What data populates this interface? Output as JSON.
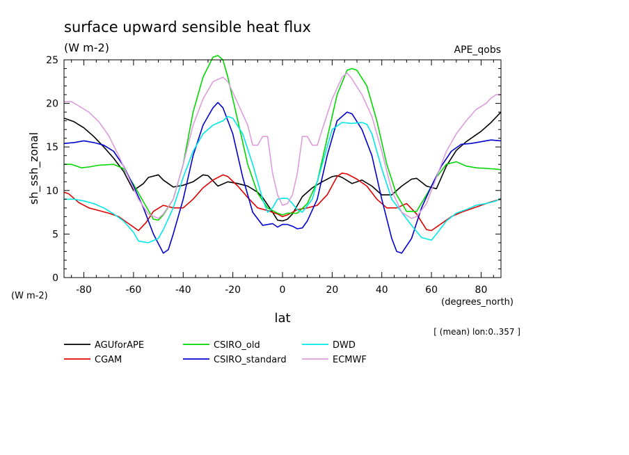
{
  "chart_data": {
    "type": "line",
    "title": "surface upward sensible heat flux",
    "subtitle": "(W m-2)",
    "corner_label": "APE_qobs",
    "ylabel": "sh_ssh_zonal",
    "y_units": "(W m-2)",
    "xlabel": "lat",
    "x_units": "(degrees_north)",
    "note": "[ (mean) lon:0..357 ]",
    "xlim": [
      -88,
      88
    ],
    "ylim": [
      0,
      25
    ],
    "x_ticks": [
      -80,
      -60,
      -40,
      -20,
      0,
      20,
      40,
      60,
      80
    ],
    "y_ticks": [
      0,
      5,
      10,
      15,
      20,
      25
    ],
    "x_tick_labels": [
      "-80",
      "-60",
      "-40",
      "-20",
      "0",
      "20",
      "40",
      "60",
      "80"
    ],
    "y_tick_labels": [
      "0",
      "5",
      "10",
      "15",
      "20",
      "25"
    ],
    "grid": false,
    "legend_position": "bottom",
    "series": [
      {
        "name": "AGUforAPE",
        "color": "#000000",
        "points": [
          [
            -88,
            18.3
          ],
          [
            -84,
            17.9
          ],
          [
            -80,
            17.2
          ],
          [
            -76,
            16.2
          ],
          [
            -72,
            15.0
          ],
          [
            -68,
            13.7
          ],
          [
            -64,
            12.2
          ],
          [
            -60,
            10.0
          ],
          [
            -56,
            10.8
          ],
          [
            -54,
            11.5
          ],
          [
            -50,
            11.8
          ],
          [
            -48,
            11.2
          ],
          [
            -44,
            10.4
          ],
          [
            -40,
            10.6
          ],
          [
            -36,
            11.0
          ],
          [
            -32,
            11.8
          ],
          [
            -30,
            11.7
          ],
          [
            -26,
            10.5
          ],
          [
            -22,
            11.0
          ],
          [
            -18,
            10.8
          ],
          [
            -14,
            10.5
          ],
          [
            -10,
            9.8
          ],
          [
            -8,
            9.2
          ],
          [
            -4,
            7.5
          ],
          [
            -2,
            6.6
          ],
          [
            0,
            6.5
          ],
          [
            2,
            6.7
          ],
          [
            4,
            7.3
          ],
          [
            8,
            9.3
          ],
          [
            12,
            10.3
          ],
          [
            16,
            11.0
          ],
          [
            20,
            11.6
          ],
          [
            22,
            11.7
          ],
          [
            24,
            11.5
          ],
          [
            28,
            10.8
          ],
          [
            32,
            11.2
          ],
          [
            36,
            10.5
          ],
          [
            40,
            9.5
          ],
          [
            44,
            9.5
          ],
          [
            48,
            10.5
          ],
          [
            52,
            11.3
          ],
          [
            54,
            11.4
          ],
          [
            58,
            10.5
          ],
          [
            62,
            10.2
          ],
          [
            66,
            12.8
          ],
          [
            70,
            14.6
          ],
          [
            74,
            15.6
          ],
          [
            80,
            16.8
          ],
          [
            84,
            17.8
          ],
          [
            88,
            19.0
          ]
        ]
      },
      {
        "name": "CGAM",
        "color": "#e00000",
        "points": [
          [
            -88,
            9.8
          ],
          [
            -86,
            9.6
          ],
          [
            -82,
            8.6
          ],
          [
            -78,
            8.0
          ],
          [
            -74,
            7.7
          ],
          [
            -70,
            7.4
          ],
          [
            -66,
            7.0
          ],
          [
            -62,
            6.2
          ],
          [
            -58,
            5.4
          ],
          [
            -55,
            6.3
          ],
          [
            -52,
            7.6
          ],
          [
            -48,
            8.3
          ],
          [
            -44,
            8.0
          ],
          [
            -40,
            8.0
          ],
          [
            -36,
            9.0
          ],
          [
            -32,
            10.3
          ],
          [
            -28,
            11.2
          ],
          [
            -24,
            11.8
          ],
          [
            -22,
            11.6
          ],
          [
            -18,
            10.5
          ],
          [
            -14,
            9.2
          ],
          [
            -10,
            8.0
          ],
          [
            -6,
            7.7
          ],
          [
            -2,
            7.3
          ],
          [
            0,
            7.0
          ],
          [
            2,
            7.2
          ],
          [
            6,
            7.8
          ],
          [
            10,
            8.0
          ],
          [
            14,
            8.3
          ],
          [
            18,
            9.5
          ],
          [
            22,
            11.6
          ],
          [
            24,
            12.0
          ],
          [
            26,
            11.9
          ],
          [
            30,
            11.3
          ],
          [
            34,
            10.5
          ],
          [
            38,
            9.0
          ],
          [
            42,
            8.0
          ],
          [
            46,
            8.0
          ],
          [
            50,
            8.5
          ],
          [
            54,
            7.3
          ],
          [
            58,
            5.5
          ],
          [
            60,
            5.4
          ],
          [
            64,
            6.2
          ],
          [
            68,
            7.0
          ],
          [
            72,
            7.5
          ],
          [
            76,
            7.9
          ],
          [
            80,
            8.3
          ],
          [
            84,
            8.7
          ],
          [
            88,
            9.0
          ]
        ]
      },
      {
        "name": "CSIRO_old",
        "color": "#00d800",
        "points": [
          [
            -88,
            13.0
          ],
          [
            -85,
            13.0
          ],
          [
            -81,
            12.6
          ],
          [
            -78,
            12.7
          ],
          [
            -74,
            12.9
          ],
          [
            -68,
            13.0
          ],
          [
            -64,
            12.5
          ],
          [
            -60,
            10.7
          ],
          [
            -56,
            8.7
          ],
          [
            -52,
            6.7
          ],
          [
            -50,
            6.6
          ],
          [
            -48,
            7.2
          ],
          [
            -44,
            9.0
          ],
          [
            -40,
            13.0
          ],
          [
            -36,
            19.0
          ],
          [
            -32,
            23.0
          ],
          [
            -28,
            25.3
          ],
          [
            -26,
            25.5
          ],
          [
            -24,
            25.0
          ],
          [
            -22,
            23.0
          ],
          [
            -18,
            18.0
          ],
          [
            -14,
            13.0
          ],
          [
            -10,
            9.7
          ],
          [
            -6,
            8.0
          ],
          [
            -2,
            7.4
          ],
          [
            0,
            7.2
          ],
          [
            2,
            7.4
          ],
          [
            6,
            7.4
          ],
          [
            10,
            8.5
          ],
          [
            14,
            11.0
          ],
          [
            18,
            16.0
          ],
          [
            22,
            21.0
          ],
          [
            26,
            23.8
          ],
          [
            28,
            24.0
          ],
          [
            30,
            23.8
          ],
          [
            34,
            22.0
          ],
          [
            38,
            18.0
          ],
          [
            42,
            13.0
          ],
          [
            46,
            9.5
          ],
          [
            50,
            7.6
          ],
          [
            54,
            7.6
          ],
          [
            58,
            9.5
          ],
          [
            62,
            11.5
          ],
          [
            66,
            13.0
          ],
          [
            70,
            13.3
          ],
          [
            74,
            12.8
          ],
          [
            78,
            12.6
          ],
          [
            84,
            12.5
          ],
          [
            88,
            12.4
          ]
        ]
      },
      {
        "name": "CSIRO_standard",
        "color": "#0000d0",
        "points": [
          [
            -88,
            15.4
          ],
          [
            -84,
            15.5
          ],
          [
            -80,
            15.7
          ],
          [
            -76,
            15.5
          ],
          [
            -72,
            15.2
          ],
          [
            -68,
            14.5
          ],
          [
            -64,
            12.8
          ],
          [
            -60,
            10.5
          ],
          [
            -56,
            8.0
          ],
          [
            -52,
            5.0
          ],
          [
            -48,
            2.8
          ],
          [
            -46,
            3.2
          ],
          [
            -44,
            5.0
          ],
          [
            -40,
            9.0
          ],
          [
            -36,
            14.0
          ],
          [
            -32,
            17.5
          ],
          [
            -28,
            19.5
          ],
          [
            -26,
            20.1
          ],
          [
            -24,
            19.5
          ],
          [
            -20,
            16.5
          ],
          [
            -16,
            11.5
          ],
          [
            -12,
            7.5
          ],
          [
            -8,
            6.0
          ],
          [
            -4,
            6.2
          ],
          [
            -2,
            5.8
          ],
          [
            0,
            6.1
          ],
          [
            2,
            6.1
          ],
          [
            4,
            5.9
          ],
          [
            6,
            5.6
          ],
          [
            8,
            5.7
          ],
          [
            10,
            6.5
          ],
          [
            14,
            9.0
          ],
          [
            18,
            14.0
          ],
          [
            22,
            18.0
          ],
          [
            26,
            19.0
          ],
          [
            28,
            18.8
          ],
          [
            32,
            17.0
          ],
          [
            36,
            14.0
          ],
          [
            40,
            9.0
          ],
          [
            44,
            4.5
          ],
          [
            46,
            3.0
          ],
          [
            48,
            2.8
          ],
          [
            52,
            4.5
          ],
          [
            56,
            8.0
          ],
          [
            60,
            10.5
          ],
          [
            64,
            12.8
          ],
          [
            68,
            14.5
          ],
          [
            72,
            15.3
          ],
          [
            76,
            15.4
          ],
          [
            80,
            15.6
          ],
          [
            84,
            15.8
          ],
          [
            88,
            15.7
          ]
        ]
      },
      {
        "name": "DWD",
        "color": "#00e8e8",
        "points": [
          [
            -88,
            9.0
          ],
          [
            -84,
            9.0
          ],
          [
            -80,
            8.8
          ],
          [
            -76,
            8.5
          ],
          [
            -72,
            8.0
          ],
          [
            -68,
            7.3
          ],
          [
            -64,
            6.5
          ],
          [
            -60,
            5.2
          ],
          [
            -58,
            4.2
          ],
          [
            -54,
            4.0
          ],
          [
            -50,
            4.5
          ],
          [
            -48,
            5.5
          ],
          [
            -44,
            8.0
          ],
          [
            -40,
            11.5
          ],
          [
            -36,
            14.5
          ],
          [
            -32,
            16.5
          ],
          [
            -28,
            17.5
          ],
          [
            -24,
            18.0
          ],
          [
            -22,
            18.5
          ],
          [
            -20,
            18.3
          ],
          [
            -16,
            16.5
          ],
          [
            -12,
            13.0
          ],
          [
            -8,
            9.0
          ],
          [
            -6,
            7.5
          ],
          [
            -4,
            8.0
          ],
          [
            -2,
            9.0
          ],
          [
            0,
            9.1
          ],
          [
            2,
            9.1
          ],
          [
            4,
            8.5
          ],
          [
            6,
            7.8
          ],
          [
            8,
            7.5
          ],
          [
            12,
            9.0
          ],
          [
            16,
            13.0
          ],
          [
            20,
            17.0
          ],
          [
            24,
            17.8
          ],
          [
            28,
            17.7
          ],
          [
            32,
            17.8
          ],
          [
            34,
            17.6
          ],
          [
            36,
            16.5
          ],
          [
            40,
            12.5
          ],
          [
            44,
            9.0
          ],
          [
            48,
            7.5
          ],
          [
            52,
            6.0
          ],
          [
            56,
            4.6
          ],
          [
            60,
            4.3
          ],
          [
            62,
            5.0
          ],
          [
            66,
            6.5
          ],
          [
            70,
            7.4
          ],
          [
            74,
            7.8
          ],
          [
            78,
            8.3
          ],
          [
            82,
            8.5
          ],
          [
            86,
            8.8
          ],
          [
            88,
            9.1
          ]
        ]
      },
      {
        "name": "ECMWF",
        "color": "#dd9ddd",
        "points": [
          [
            -88,
            20.2
          ],
          [
            -85,
            20.2
          ],
          [
            -82,
            19.7
          ],
          [
            -78,
            19.0
          ],
          [
            -74,
            17.9
          ],
          [
            -70,
            16.3
          ],
          [
            -66,
            14.0
          ],
          [
            -62,
            11.5
          ],
          [
            -58,
            9.0
          ],
          [
            -54,
            7.3
          ],
          [
            -50,
            6.8
          ],
          [
            -48,
            7.3
          ],
          [
            -44,
            9.0
          ],
          [
            -40,
            13.0
          ],
          [
            -36,
            17.5
          ],
          [
            -32,
            20.5
          ],
          [
            -28,
            22.5
          ],
          [
            -24,
            23.0
          ],
          [
            -22,
            22.5
          ],
          [
            -18,
            20.0
          ],
          [
            -14,
            17.5
          ],
          [
            -12,
            15.2
          ],
          [
            -10,
            15.2
          ],
          [
            -8,
            16.2
          ],
          [
            -6,
            16.2
          ],
          [
            -4,
            12.0
          ],
          [
            -2,
            9.5
          ],
          [
            0,
            8.3
          ],
          [
            2,
            8.5
          ],
          [
            4,
            9.5
          ],
          [
            6,
            12.0
          ],
          [
            8,
            16.2
          ],
          [
            10,
            16.2
          ],
          [
            12,
            15.2
          ],
          [
            14,
            15.2
          ],
          [
            16,
            17.0
          ],
          [
            20,
            20.5
          ],
          [
            24,
            23.0
          ],
          [
            26,
            23.5
          ],
          [
            28,
            22.8
          ],
          [
            32,
            21.0
          ],
          [
            36,
            18.5
          ],
          [
            40,
            14.5
          ],
          [
            44,
            10.0
          ],
          [
            48,
            7.5
          ],
          [
            52,
            6.8
          ],
          [
            54,
            7.0
          ],
          [
            58,
            8.5
          ],
          [
            62,
            11.5
          ],
          [
            66,
            14.5
          ],
          [
            70,
            16.5
          ],
          [
            74,
            18.0
          ],
          [
            78,
            19.3
          ],
          [
            82,
            20.0
          ],
          [
            84,
            20.6
          ],
          [
            86,
            21.0
          ],
          [
            88,
            21.0
          ]
        ]
      }
    ]
  }
}
